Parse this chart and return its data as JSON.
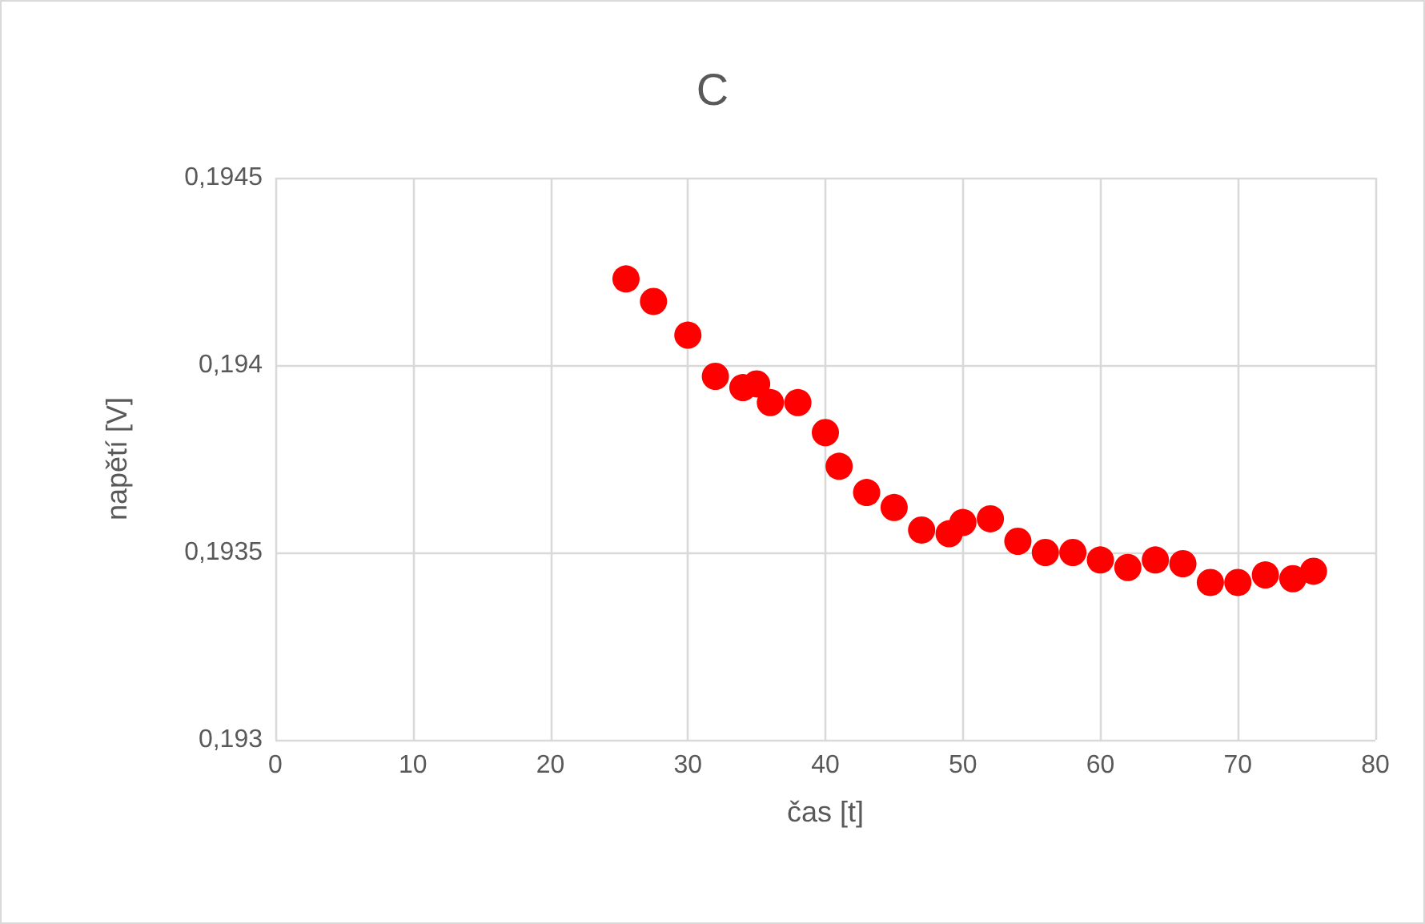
{
  "chart_data": {
    "type": "scatter",
    "title": "C",
    "xlabel": "čas [t]",
    "ylabel": "napětí [V]",
    "x": [
      25.5,
      27.5,
      30,
      32,
      34,
      35,
      36,
      38,
      40,
      41,
      43,
      45,
      47,
      49,
      50,
      52,
      54,
      56,
      58,
      60,
      62,
      64,
      66,
      68,
      70,
      72,
      74,
      75.5
    ],
    "series": [
      {
        "color": "#ff0000",
        "values": [
          0.19423,
          0.19417,
          0.19408,
          0.19397,
          0.19394,
          0.19395,
          0.1939,
          0.1939,
          0.19382,
          0.19373,
          0.19366,
          0.19362,
          0.19356,
          0.19355,
          0.19358,
          0.19359,
          0.19353,
          0.1935,
          0.1935,
          0.19348,
          0.19346,
          0.19348,
          0.19347,
          0.19342,
          0.19342,
          0.19344,
          0.19343,
          0.19345
        ]
      }
    ],
    "xlim": [
      0,
      80
    ],
    "xticks": [
      0,
      10,
      20,
      30,
      40,
      50,
      60,
      70,
      80
    ],
    "ylim": [
      0.193,
      0.1945
    ],
    "yticks": [
      {
        "value": 0.193,
        "label": "0,193"
      },
      {
        "value": 0.1935,
        "label": "0,1935"
      },
      {
        "value": 0.194,
        "label": "0,194"
      },
      {
        "value": 0.1945,
        "label": "0,1945"
      }
    ],
    "grid": true,
    "marker": "circle"
  }
}
